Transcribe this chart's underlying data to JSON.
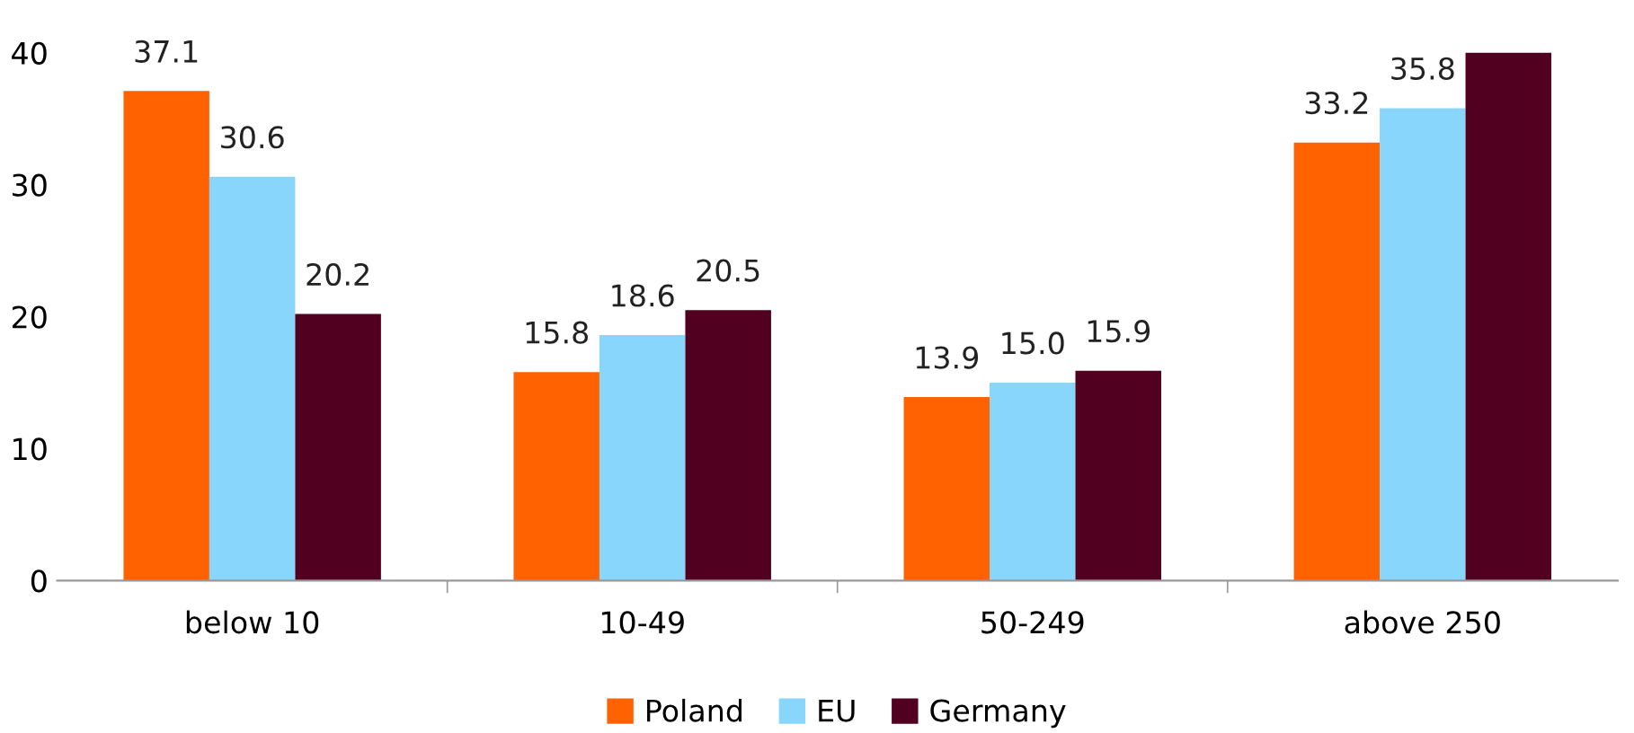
{
  "chart_data": {
    "type": "bar",
    "categories": [
      "below 10",
      "10-49",
      "50-249",
      "above 250"
    ],
    "series": [
      {
        "name": "Poland",
        "color": "#ff6200",
        "values": [
          37.1,
          15.8,
          13.9,
          33.2
        ],
        "value_labels": [
          "37.1",
          "15.8",
          "13.9",
          "33.2"
        ]
      },
      {
        "name": "EU",
        "color": "#89d6fd",
        "values": [
          30.6,
          18.6,
          15.0,
          35.8
        ],
        "value_labels": [
          "30.6",
          "18.6",
          "15.0",
          "35.8"
        ]
      },
      {
        "name": "Germany",
        "color": "#52001f",
        "values": [
          20.2,
          20.5,
          15.9,
          40.0
        ],
        "value_labels": [
          "20.2",
          "20.5",
          "15.9",
          null
        ]
      }
    ],
    "ylim": [
      0,
      40
    ],
    "yticks": [
      0,
      10,
      20,
      30,
      40
    ],
    "grid": false,
    "legend": "bottom"
  }
}
